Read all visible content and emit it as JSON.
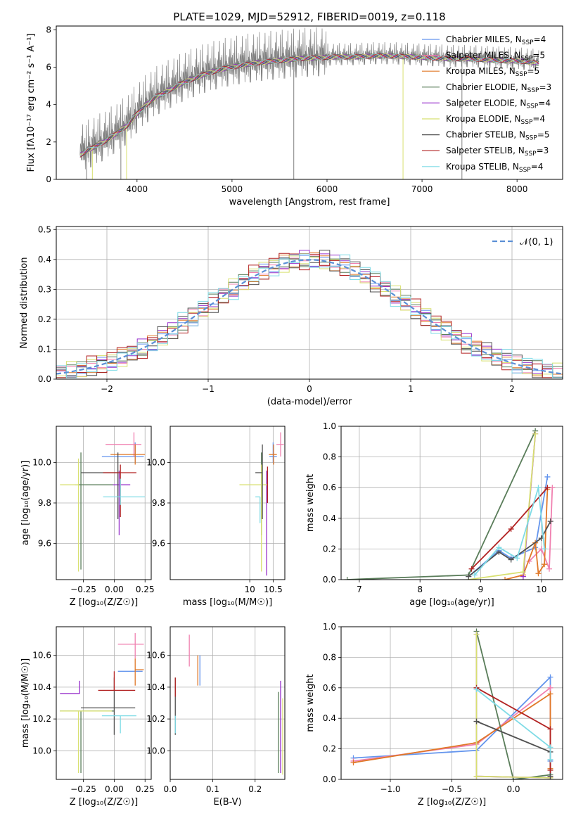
{
  "figure": {
    "colors": [
      "#6495ed",
      "#f080b0",
      "#e07828",
      "#5a7d5a",
      "#9932cc",
      "#d8e070",
      "#505050",
      "#b22222",
      "#7fdbe6"
    ],
    "model_labels": [
      "Chabrier MILES",
      "Salpeter MILES",
      "Kroupa MILES",
      "Chabrier ELODIE",
      "Salpeter ELODIE",
      "Kroupa ELODIE",
      "Chabrier STELIB",
      "Salpeter STELIB",
      "Kroupa STELIB"
    ],
    "model_nssp": [
      "4",
      "5",
      "5",
      "3",
      "4",
      "4",
      "5",
      "3",
      "4"
    ]
  },
  "chart_data": [
    {
      "type": "line",
      "title": "PLATE=1029, MJD=52912, FIBERID=0019, z=0.118",
      "xlabel": "wavelength [Angstrom, rest frame]",
      "ylabel": "Flux [fλ10⁻¹⁷ erg cm⁻² s⁻¹ A⁻¹]",
      "xlim": [
        3150,
        8480
      ],
      "ylim": [
        0,
        8.2
      ],
      "xticks": [
        4000,
        5000,
        6000,
        7000,
        8000
      ],
      "yticks": [
        0,
        2,
        4,
        6,
        8
      ],
      "legend": "top-right",
      "continuum": {
        "x": [
          3400,
          3500,
          3650,
          3800,
          3900,
          4000,
          4100,
          4200,
          4350,
          4500,
          4700,
          4900,
          5100,
          5300,
          5500,
          5700,
          5900,
          6100,
          6300,
          6500,
          6700,
          6900,
          7100,
          7300,
          7500,
          7700,
          7900,
          8100,
          8230
        ],
        "y": [
          1.3,
          1.6,
          2.0,
          2.5,
          2.9,
          3.5,
          4.0,
          4.4,
          4.8,
          5.2,
          5.6,
          5.9,
          6.1,
          6.25,
          6.35,
          6.45,
          6.5,
          6.55,
          6.55,
          6.6,
          6.6,
          6.55,
          6.5,
          6.45,
          6.45,
          6.4,
          6.35,
          6.3,
          6.2
        ]
      },
      "data_noise": [
        0,
        1.2,
        0.6,
        -0.9,
        1.5,
        -1.8,
        0.4,
        1.9,
        -1.1,
        0.8,
        -2.0,
        1.3,
        -0.5,
        2.2,
        -1.4,
        0.9,
        -0.2,
        1.7,
        -1.6,
        0.3,
        1.1,
        -0.8,
        2.0,
        -1.9,
        0.6,
        -0.4,
        1.4,
        -1.2,
        0.7,
        -1.5
      ],
      "deep_dips_x": [
        3470,
        3530,
        3830,
        3890,
        5650,
        6800,
        7420
      ],
      "noise_amplitude": 1.4
    },
    {
      "type": "line",
      "xlabel": "(data-model)/error",
      "ylabel": "Normed distribution",
      "xlim": [
        -2.5,
        2.5
      ],
      "ylim": [
        0,
        0.51
      ],
      "xticks": [
        -2,
        -1,
        0,
        1,
        2
      ],
      "yticks": [
        0.0,
        0.1,
        0.2,
        0.3,
        0.4,
        0.5
      ],
      "legend_label": "𝒩(0, 1)",
      "legend": "top-right",
      "bin_width": 0.1,
      "bin_start": -2.5,
      "hist_jitter": [
        0.02,
        -0.015,
        0.03,
        -0.025,
        0.01,
        0.035,
        -0.02,
        -0.03,
        0.025,
        -0.01,
        0.015,
        -0.035,
        0.04,
        -0.005,
        0.02,
        -0.028
      ]
    },
    {
      "type": "scatter",
      "xlabel": "Z [log₁₀(Z/Z☉)]",
      "ylabel": "age  [log₁₀(age/yr)]",
      "xlim": [
        -0.47,
        0.3
      ],
      "ylim": [
        9.42,
        10.18
      ],
      "xticks": [
        -0.25,
        0.0,
        0.25
      ],
      "yticks": [
        9.6,
        9.8,
        10.0
      ],
      "points": [
        {
          "x": 0.17,
          "xerr": [
            0.27,
            0.07
          ],
          "y": 10.03,
          "yerr": [
            0.03,
            0.07
          ]
        },
        {
          "x": 0.16,
          "xerr": [
            0.23,
            0.06
          ],
          "y": 10.09,
          "yerr": [
            0.06,
            0.06
          ]
        },
        {
          "x": 0.17,
          "xerr": [
            0.2,
            0.08
          ],
          "y": 10.04,
          "yerr": [
            0.05,
            0.05
          ]
        },
        {
          "x": -0.27,
          "xerr": [
            0.05,
            0.27
          ],
          "y": 9.89,
          "yerr": [
            0.42,
            0.16
          ]
        },
        {
          "x": 0.04,
          "xerr": [
            0.05,
            0.09
          ],
          "y": 9.89,
          "yerr": [
            0.25,
            0.07
          ]
        },
        {
          "x": -0.29,
          "xerr": [
            0.15,
            0.0
          ],
          "y": 9.89,
          "yerr": [
            0.43,
            0.13
          ]
        },
        {
          "x": 0.03,
          "xerr": [
            0.3,
            0.0
          ],
          "y": 9.95,
          "yerr": [
            0.23,
            0.1
          ]
        },
        {
          "x": 0.05,
          "xerr": [
            0.14,
            0.13
          ],
          "y": 9.95,
          "yerr": [
            0.22,
            0.04
          ]
        },
        {
          "x": 0.05,
          "xerr": [
            0.14,
            0.2
          ],
          "y": 9.83,
          "yerr": [
            0.04,
            0.09
          ]
        }
      ]
    },
    {
      "type": "scatter",
      "xlabel": "mass [log₁₀(M/M☉)]",
      "ylabel": "",
      "xlim": [
        8.3,
        10.75
      ],
      "ylim": [
        9.42,
        10.18
      ],
      "xticks": [
        10.0,
        10.5
      ],
      "yticks": [
        9.6,
        9.8,
        10.0
      ],
      "points": [
        {
          "x": 10.5,
          "xerr": [
            0.08,
            0.08
          ],
          "y": 10.03,
          "yerr": [
            0.03,
            0.07
          ]
        },
        {
          "x": 10.66,
          "xerr": [
            0.09,
            0.07
          ],
          "y": 10.09,
          "yerr": [
            0.06,
            0.06
          ]
        },
        {
          "x": 10.51,
          "xerr": [
            0.1,
            0.07
          ],
          "y": 10.04,
          "yerr": [
            0.05,
            0.05
          ]
        },
        {
          "x": 10.25,
          "xerr": [
            0.0,
            0.0
          ],
          "y": 9.89,
          "yerr": [
            0.25,
            0.16
          ]
        },
        {
          "x": 10.36,
          "xerr": [
            0.0,
            0.0
          ],
          "y": 9.89,
          "yerr": [
            0.45,
            0.07
          ]
        },
        {
          "x": 10.25,
          "xerr": [
            0.47,
            0.13
          ],
          "y": 9.89,
          "yerr": [
            0.43,
            0.1
          ]
        },
        {
          "x": 10.27,
          "xerr": [
            0.15,
            0.0
          ],
          "y": 9.95,
          "yerr": [
            0.23,
            0.14
          ]
        },
        {
          "x": 10.38,
          "xerr": [
            0.0,
            0.0
          ],
          "y": 9.95,
          "yerr": [
            0.15,
            0.03
          ]
        },
        {
          "x": 10.22,
          "xerr": [
            0.1,
            0.0
          ],
          "y": 9.83,
          "yerr": [
            0.13,
            0.0
          ]
        }
      ]
    },
    {
      "type": "line",
      "xlabel": "age  [log₁₀(age/yr)]",
      "ylabel": "mass weight",
      "xlim": [
        6.7,
        10.35
      ],
      "ylim": [
        0,
        1.0
      ],
      "xticks": [
        7,
        8,
        9,
        10
      ],
      "yticks": [
        0.0,
        0.2,
        0.4,
        0.6,
        0.8,
        1.0
      ],
      "series": [
        {
          "x": [
            8.8,
            9.3,
            9.5,
            9.9,
            10.1
          ],
          "y": [
            0.02,
            0.19,
            0.14,
            0.21,
            0.67
          ]
        },
        {
          "x": [
            9.8,
            10.0,
            10.13,
            10.18
          ],
          "y": [
            0.12,
            0.2,
            0.07,
            0.6
          ]
        },
        {
          "x": [
            9.4,
            9.7,
            9.9,
            9.95,
            10.05,
            10.1
          ],
          "y": [
            0.0,
            0.03,
            0.24,
            0.04,
            0.1,
            0.59
          ]
        },
        {
          "x": [
            6.8,
            8.8,
            9.9
          ],
          "y": [
            0.0,
            0.03,
            0.97
          ]
        },
        {
          "x": [
            9.7,
            9.9
          ],
          "y": [
            0.02,
            0.95
          ]
        },
        {
          "x": [
            8.8,
            9.7,
            9.9
          ],
          "y": [
            0.0,
            0.05,
            0.95
          ]
        },
        {
          "x": [
            8.8,
            9.3,
            9.5,
            10.0,
            10.15
          ],
          "y": [
            0.02,
            0.18,
            0.13,
            0.27,
            0.38
          ]
        },
        {
          "x": [
            8.85,
            9.5,
            10.1
          ],
          "y": [
            0.07,
            0.33,
            0.6
          ]
        },
        {
          "x": [
            8.9,
            9.3,
            9.6,
            9.95,
            10.05
          ],
          "y": [
            0.03,
            0.21,
            0.14,
            0.6,
            0.2
          ]
        }
      ]
    },
    {
      "type": "scatter",
      "xlabel": "Z [log₁₀(Z/Z☉)]",
      "ylabel": "mass [log₁₀(M/M☉)]",
      "xlim": [
        -0.47,
        0.3
      ],
      "ylim": [
        9.82,
        10.78
      ],
      "xticks": [
        -0.25,
        0.0,
        0.25
      ],
      "yticks": [
        10.0,
        10.2,
        10.4,
        10.6
      ],
      "points": [
        {
          "x": 0.17,
          "xerr": [
            0.14,
            0.06
          ],
          "y": 10.5,
          "yerr": [
            0.0,
            0.0
          ]
        },
        {
          "x": 0.17,
          "xerr": [
            0.14,
            0.07
          ],
          "y": 10.67,
          "yerr": [
            0.09,
            0.07
          ]
        },
        {
          "x": 0.17,
          "xerr": [
            0.0,
            0.07
          ],
          "y": 10.51,
          "yerr": [
            0.1,
            0.07
          ]
        },
        {
          "x": -0.27,
          "xerr": [
            0.17,
            0.27
          ],
          "y": 10.25,
          "yerr": [
            0.39,
            0.0
          ]
        },
        {
          "x": -0.28,
          "xerr": [
            0.16,
            0.0
          ],
          "y": 10.36,
          "yerr": [
            0.0,
            0.08
          ]
        },
        {
          "x": -0.29,
          "xerr": [
            0.15,
            0.27
          ],
          "y": 10.25,
          "yerr": [
            0.39,
            0.0
          ]
        },
        {
          "x": 0.0,
          "xerr": [
            0.27,
            0.17
          ],
          "y": 10.27,
          "yerr": [
            0.17,
            0.19
          ]
        },
        {
          "x": 0.0,
          "xerr": [
            0.13,
            0.17
          ],
          "y": 10.38,
          "yerr": [
            0.0,
            0.12
          ]
        },
        {
          "x": 0.05,
          "xerr": [
            0.15,
            0.13
          ],
          "y": 10.22,
          "yerr": [
            0.11,
            0.0
          ]
        }
      ]
    },
    {
      "type": "scatter",
      "xlabel": "E(B-V)",
      "ylabel": "",
      "xlim": [
        0,
        0.27
      ],
      "ylim": [
        9.82,
        10.78
      ],
      "xticks": [
        0.0,
        0.1,
        0.2
      ],
      "yticks": [
        10.0,
        10.2,
        10.4,
        10.6
      ],
      "points": [
        {
          "x": 0.07,
          "xerr": [
            0,
            0
          ],
          "y": 10.5,
          "yerr": [
            0.09,
            0.1
          ]
        },
        {
          "x": 0.045,
          "xerr": [
            0,
            0
          ],
          "y": 10.6,
          "yerr": [
            0.07,
            0.13
          ]
        },
        {
          "x": 0.065,
          "xerr": [
            0,
            0
          ],
          "y": 10.51,
          "yerr": [
            0.1,
            0.09
          ]
        },
        {
          "x": 0.255,
          "xerr": [
            0,
            0
          ],
          "y": 10.25,
          "yerr": [
            0.39,
            0.12
          ]
        },
        {
          "x": 0.26,
          "xerr": [
            0,
            0
          ],
          "y": 10.36,
          "yerr": [
            0.5,
            0.08
          ]
        },
        {
          "x": 0.265,
          "xerr": [
            0,
            0
          ],
          "y": 10.25,
          "yerr": [
            0.4,
            0.08
          ]
        },
        {
          "x": 0.012,
          "xerr": [
            0,
            0
          ],
          "y": 10.27,
          "yerr": [
            0.17,
            0.19
          ]
        },
        {
          "x": 0.012,
          "xerr": [
            0,
            0
          ],
          "y": 10.38,
          "yerr": [
            0.04,
            0.08
          ]
        },
        {
          "x": 0.012,
          "xerr": [
            0,
            0
          ],
          "y": 10.22,
          "yerr": [
            0.11,
            0.0
          ]
        }
      ]
    },
    {
      "type": "line",
      "xlabel": "Z [log₁₀(Z/Z☉)]",
      "ylabel": "mass weight",
      "xlim": [
        -1.4,
        0.4
      ],
      "ylim": [
        0,
        1.0
      ],
      "xticks": [
        -1.0,
        -0.5,
        0.0
      ],
      "yticks": [
        0.0,
        0.2,
        0.4,
        0.6,
        0.8,
        1.0
      ],
      "series": [
        {
          "x": [
            -1.3,
            -0.3,
            0.3,
            0.3
          ],
          "y": [
            0.14,
            0.19,
            0.67,
            0.12
          ]
        },
        {
          "x": [
            -1.3,
            -0.3,
            0.3,
            0.3
          ],
          "y": [
            0.12,
            0.23,
            0.6,
            0.02
          ]
        },
        {
          "x": [
            -1.3,
            -0.3,
            0.3,
            0.3
          ],
          "y": [
            0.11,
            0.24,
            0.56,
            0.07
          ]
        },
        {
          "x": [
            -0.3,
            0.0,
            0.3,
            0.3
          ],
          "y": [
            0.97,
            0.0,
            0.03,
            0.0
          ]
        },
        {
          "x": [
            -0.3,
            -0.3,
            0.3
          ],
          "y": [
            0.95,
            0.02,
            0.01
          ]
        },
        {
          "x": [
            -0.3,
            -0.3,
            0.3
          ],
          "y": [
            0.95,
            0.02,
            0.01
          ]
        },
        {
          "x": [
            -0.3,
            0.3,
            0.3
          ],
          "y": [
            0.38,
            0.18,
            0.02
          ]
        },
        {
          "x": [
            -0.3,
            0.3,
            0.3
          ],
          "y": [
            0.6,
            0.33,
            0.06
          ]
        },
        {
          "x": [
            -0.3,
            0.3,
            0.3
          ],
          "y": [
            0.59,
            0.21,
            0.13
          ]
        }
      ]
    }
  ]
}
